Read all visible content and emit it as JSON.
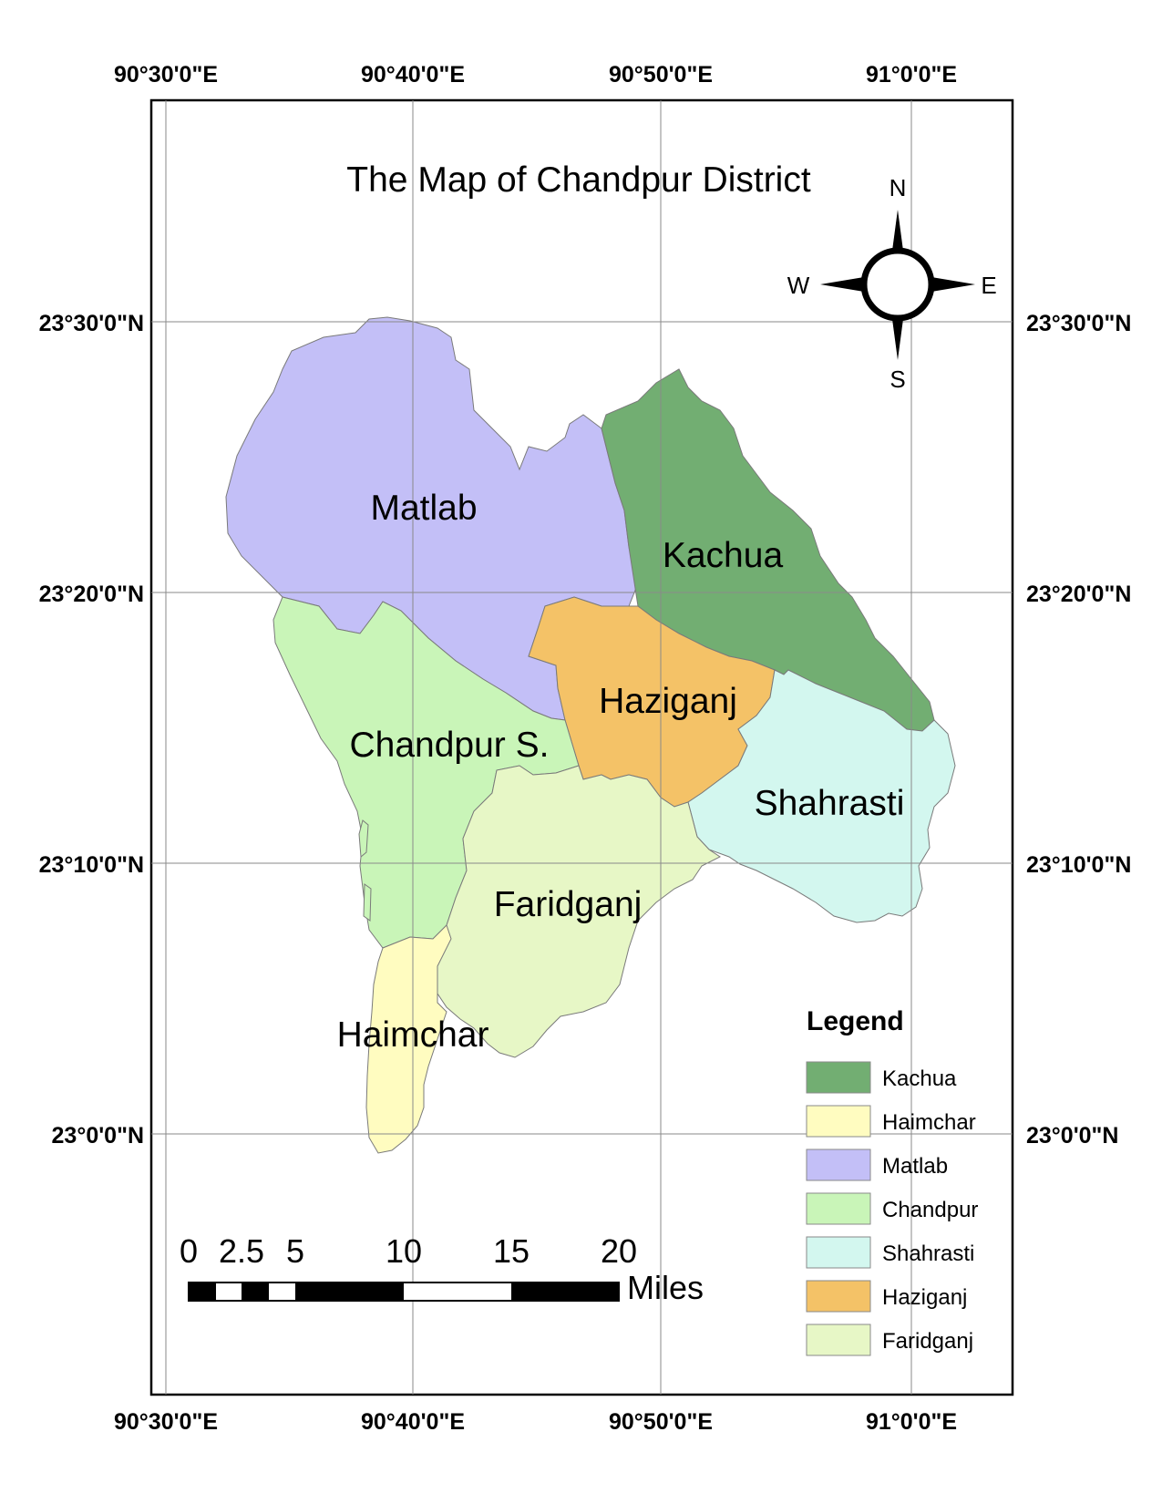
{
  "map": {
    "title": "The Map of Chandpur District",
    "longitude_labels": [
      "90°30'0\"E",
      "90°40'0\"E",
      "90°50'0\"E",
      "91°0'0\"E"
    ],
    "latitude_labels": [
      "23°30'0\"N",
      "23°20'0\"N",
      "23°10'0\"N",
      "23°0'0\"N"
    ],
    "compass": {
      "n": "N",
      "s": "S",
      "e": "E",
      "w": "W"
    },
    "regions": [
      {
        "id": "matlab",
        "label": "Matlab",
        "color": "#c3bff7"
      },
      {
        "id": "kachua",
        "label": "Kachua",
        "color": "#72ae72"
      },
      {
        "id": "haziganj",
        "label": "Haziganj",
        "color": "#f4c267"
      },
      {
        "id": "chandpur",
        "label": "Chandpur S.",
        "color": "#c9f5b8"
      },
      {
        "id": "shahrasti",
        "label": "Shahrasti",
        "color": "#d3f7ef"
      },
      {
        "id": "faridganj",
        "label": "Faridganj",
        "color": "#e7f7c6"
      },
      {
        "id": "haimchar",
        "label": "Haimchar",
        "color": "#fffcc0"
      }
    ],
    "legend": {
      "title": "Legend",
      "items": [
        {
          "label": "Kachua",
          "color": "#72ae72"
        },
        {
          "label": "Haimchar",
          "color": "#fffcc0"
        },
        {
          "label": "Matlab",
          "color": "#c3bff7"
        },
        {
          "label": "Chandpur",
          "color": "#c9f5b8"
        },
        {
          "label": "Shahrasti",
          "color": "#d3f7ef"
        },
        {
          "label": "Haziganj",
          "color": "#f4c267"
        },
        {
          "label": "Faridganj",
          "color": "#e7f7c6"
        }
      ]
    },
    "scale_bar": {
      "labels": [
        "0",
        "2.5",
        "5",
        "10",
        "15",
        "20"
      ],
      "unit": "Miles"
    }
  }
}
